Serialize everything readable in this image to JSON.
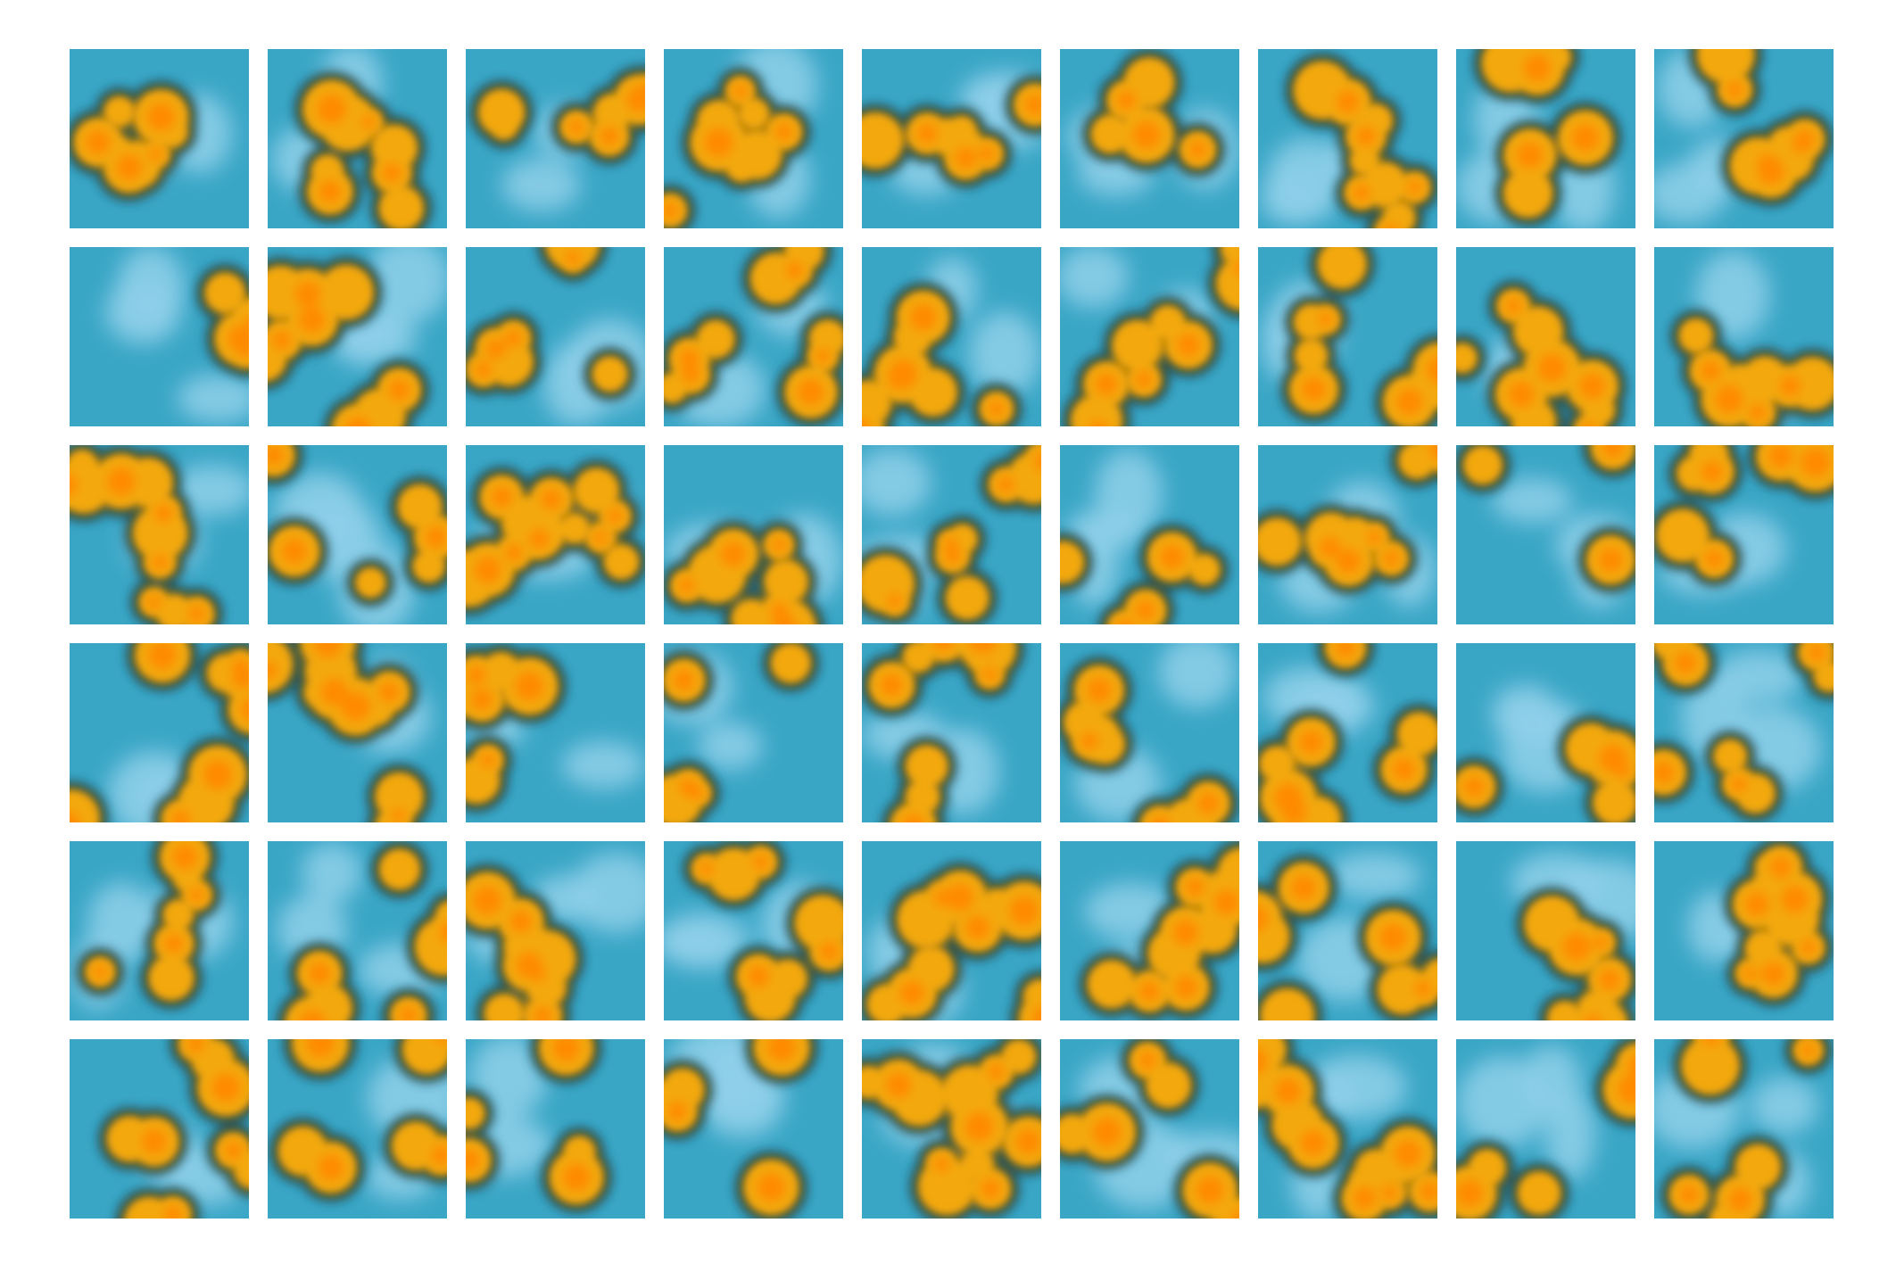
{
  "grid": {
    "rows": 6,
    "columns": 9,
    "tile_count": 54
  },
  "colors": {
    "background": "#ffffff",
    "cold_light": "#8fd0ea",
    "cold_mid": "#3aa6c6",
    "cold_dark": "#0f5a78",
    "contour": "#1e4d5a",
    "warm_dark": "#c48a10",
    "warm_mid": "#f3a90c",
    "warm_peak": "#ff8a00"
  }
}
